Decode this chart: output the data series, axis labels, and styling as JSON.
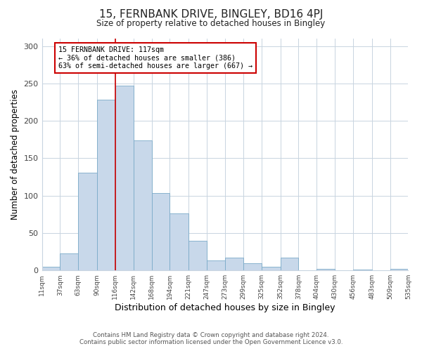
{
  "title": "15, FERNBANK DRIVE, BINGLEY, BD16 4PJ",
  "subtitle": "Size of property relative to detached houses in Bingley",
  "xlabel": "Distribution of detached houses by size in Bingley",
  "ylabel": "Number of detached properties",
  "bin_edges": [
    11,
    37,
    63,
    90,
    116,
    142,
    168,
    194,
    221,
    247,
    273,
    299,
    325,
    352,
    378,
    404,
    430,
    456,
    483,
    509,
    535
  ],
  "bar_heights": [
    5,
    23,
    131,
    228,
    247,
    174,
    103,
    76,
    40,
    13,
    17,
    10,
    5,
    17,
    0,
    2,
    0,
    1,
    0,
    2
  ],
  "bar_color": "#c8d8ea",
  "bar_edge_color": "#7aaac8",
  "vline_color": "#cc0000",
  "vline_x": 116,
  "annotation_text": "15 FERNBANK DRIVE: 117sqm\n← 36% of detached houses are smaller (386)\n63% of semi-detached houses are larger (667) →",
  "annotation_box_color": "#cc0000",
  "ylim": [
    0,
    310
  ],
  "yticks": [
    0,
    50,
    100,
    150,
    200,
    250,
    300
  ],
  "grid_color": "#c8d4e0",
  "footnote1": "Contains HM Land Registry data © Crown copyright and database right 2024.",
  "footnote2": "Contains public sector information licensed under the Open Government Licence v3.0.",
  "bg_color": "#ffffff",
  "plot_bg_color": "#ffffff"
}
